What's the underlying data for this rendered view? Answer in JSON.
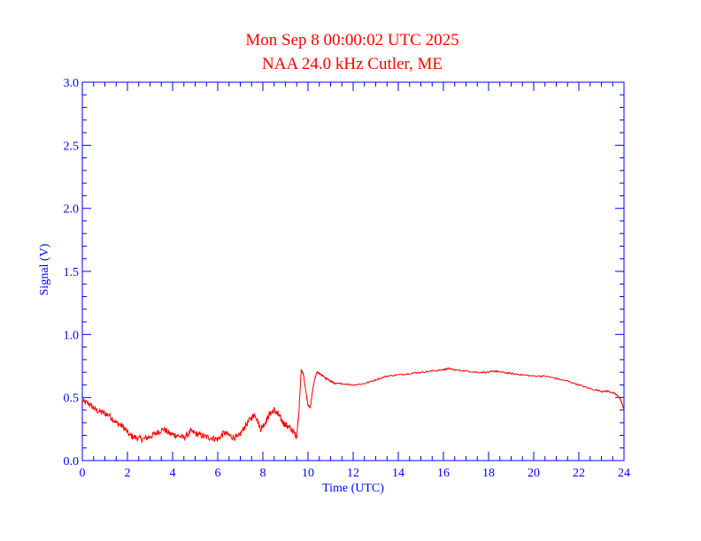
{
  "chart_data": {
    "type": "line",
    "title": "Mon Sep 8 00:00:02 UTC 2025",
    "subtitle": "NAA 24.0 kHz Cutler, ME",
    "xlabel": "Time (UTC)",
    "ylabel": "Signal (V)",
    "xlim": [
      0,
      24
    ],
    "ylim": [
      0.0,
      3.0
    ],
    "x_ticks": [
      0,
      2,
      4,
      6,
      8,
      10,
      12,
      14,
      16,
      18,
      20,
      22,
      24
    ],
    "x_tick_labels": [
      "0",
      "2",
      "4",
      "6",
      "8",
      "10",
      "12",
      "14",
      "16",
      "18",
      "20",
      "22",
      "24"
    ],
    "y_ticks": [
      0.0,
      0.5,
      1.0,
      1.5,
      2.0,
      2.5,
      3.0
    ],
    "y_tick_labels": [
      "0.0",
      "0.5",
      "1.0",
      "1.5",
      "2.0",
      "2.5",
      "3.0"
    ],
    "x_minor_step": 0.5,
    "y_minor_step": 0.1,
    "grid": false,
    "colors": {
      "axis": "#0000ff",
      "series": "#ff0000",
      "title": "#ff0000"
    },
    "series": [
      {
        "x": [
          0,
          0.3,
          0.6,
          0.9,
          1.2,
          1.5,
          1.8,
          2.1,
          2.4,
          2.7,
          3.0,
          3.3,
          3.6,
          3.9,
          4.2,
          4.5,
          4.8,
          5.1,
          5.4,
          5.7,
          6.0,
          6.3,
          6.6,
          6.9,
          7.2,
          7.5,
          7.65,
          7.9,
          8.1,
          8.3,
          8.5,
          8.7,
          8.9,
          9.1,
          9.3,
          9.5,
          9.6,
          9.7,
          9.8,
          9.9,
          10.0,
          10.1,
          10.2,
          10.3,
          10.4,
          10.5,
          10.6,
          10.8,
          11.0,
          11.2,
          11.5,
          12.0,
          12.5,
          13.0,
          13.5,
          14.0,
          14.5,
          15.0,
          15.5,
          16.0,
          16.2,
          16.5,
          17.0,
          17.5,
          18.0,
          18.3,
          18.6,
          19.0,
          19.5,
          20.0,
          20.5,
          21.0,
          21.5,
          22.0,
          22.5,
          23.0,
          23.3,
          23.6,
          23.8,
          23.9,
          24.0
        ],
        "values": [
          0.47,
          0.45,
          0.4,
          0.38,
          0.36,
          0.3,
          0.27,
          0.2,
          0.18,
          0.17,
          0.19,
          0.22,
          0.25,
          0.21,
          0.2,
          0.18,
          0.23,
          0.21,
          0.19,
          0.18,
          0.17,
          0.22,
          0.19,
          0.18,
          0.27,
          0.34,
          0.37,
          0.25,
          0.3,
          0.37,
          0.4,
          0.36,
          0.3,
          0.27,
          0.24,
          0.19,
          0.4,
          0.72,
          0.68,
          0.55,
          0.44,
          0.42,
          0.55,
          0.65,
          0.7,
          0.69,
          0.68,
          0.65,
          0.63,
          0.61,
          0.61,
          0.6,
          0.61,
          0.64,
          0.67,
          0.68,
          0.69,
          0.7,
          0.71,
          0.72,
          0.73,
          0.72,
          0.71,
          0.7,
          0.7,
          0.71,
          0.7,
          0.69,
          0.68,
          0.67,
          0.67,
          0.65,
          0.63,
          0.6,
          0.57,
          0.55,
          0.55,
          0.53,
          0.5,
          0.46,
          0.4
        ]
      }
    ]
  }
}
